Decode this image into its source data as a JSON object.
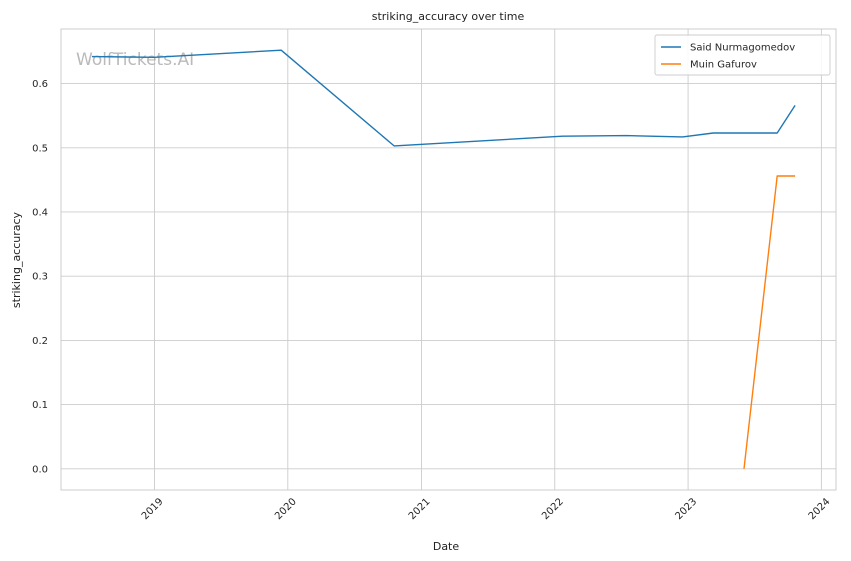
{
  "chart_data": {
    "type": "line",
    "title": "striking_accuracy over time",
    "xlabel": "Date",
    "ylabel": "striking_accuracy",
    "watermark": "WolfTickets.AI",
    "x_type": "date",
    "xlim": [
      "2018-04-20",
      "2024-02-10"
    ],
    "ylim": [
      -0.033,
      0.685
    ],
    "x_ticks": [
      {
        "value": "2019-01-01",
        "label": "2019"
      },
      {
        "value": "2020-01-01",
        "label": "2020"
      },
      {
        "value": "2021-01-01",
        "label": "2021"
      },
      {
        "value": "2022-01-01",
        "label": "2022"
      },
      {
        "value": "2023-01-01",
        "label": "2023"
      },
      {
        "value": "2024-01-01",
        "label": "2024"
      }
    ],
    "y_ticks": [
      {
        "value": 0.0,
        "label": "0.0"
      },
      {
        "value": 0.1,
        "label": "0.1"
      },
      {
        "value": 0.2,
        "label": "0.2"
      },
      {
        "value": 0.3,
        "label": "0.3"
      },
      {
        "value": 0.4,
        "label": "0.4"
      },
      {
        "value": 0.5,
        "label": "0.5"
      },
      {
        "value": 0.6,
        "label": "0.6"
      }
    ],
    "grid": true,
    "legend_position": "top-right",
    "series": [
      {
        "name": "Said Nurmagomedov",
        "color": "#1f77b4",
        "points": [
          {
            "x": "2018-07-14",
            "y": 0.642
          },
          {
            "x": "2019-01-01",
            "y": 0.641
          },
          {
            "x": "2019-12-14",
            "y": 0.652
          },
          {
            "x": "2020-10-18",
            "y": 0.503
          },
          {
            "x": "2022-01-22",
            "y": 0.518
          },
          {
            "x": "2022-07-16",
            "y": 0.519
          },
          {
            "x": "2022-12-17",
            "y": 0.517
          },
          {
            "x": "2023-03-11",
            "y": 0.523
          },
          {
            "x": "2023-09-02",
            "y": 0.523
          },
          {
            "x": "2023-10-21",
            "y": 0.566
          }
        ]
      },
      {
        "name": "Muin Gafurov",
        "color": "#ff7f0e",
        "points": [
          {
            "x": "2023-06-03",
            "y": 0.0
          },
          {
            "x": "2023-09-02",
            "y": 0.456
          },
          {
            "x": "2023-10-21",
            "y": 0.456
          }
        ]
      }
    ]
  }
}
